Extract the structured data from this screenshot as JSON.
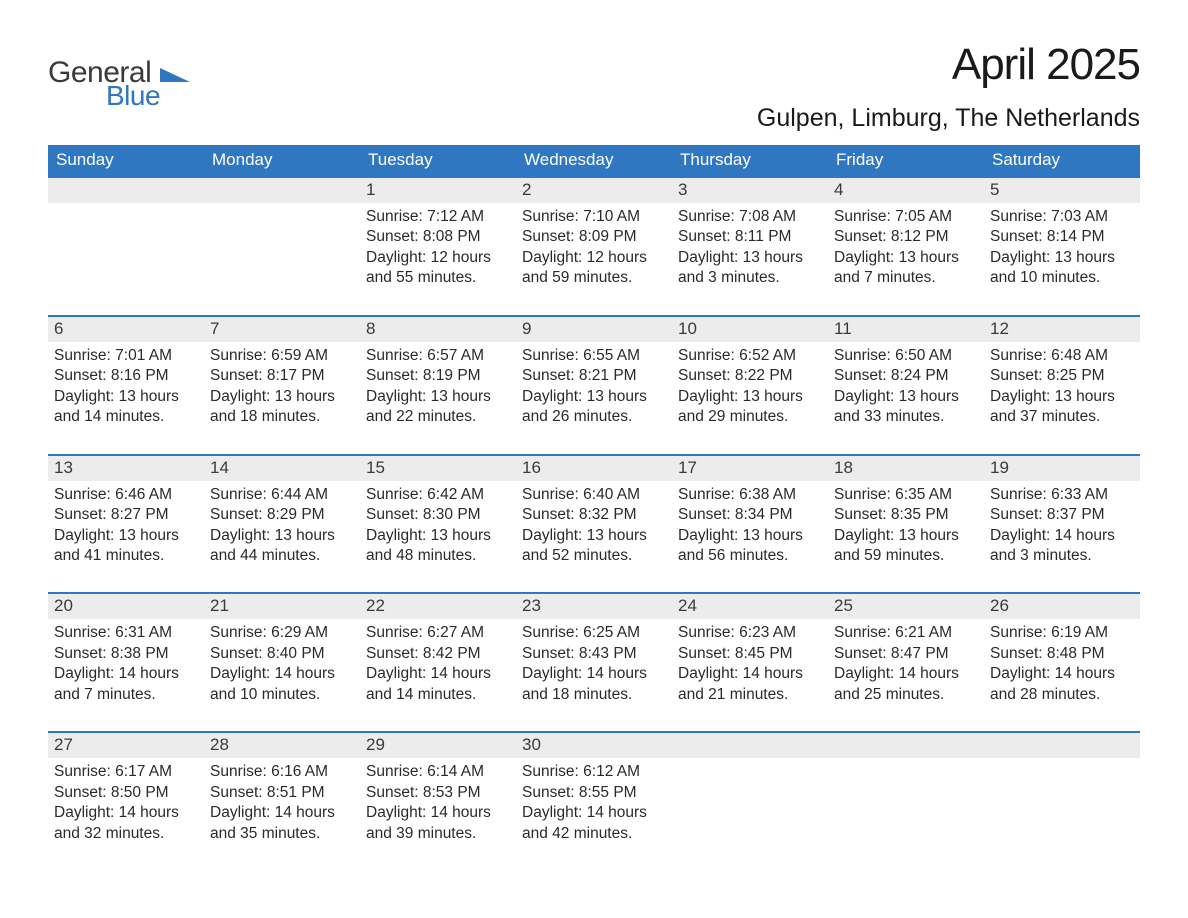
{
  "brand": {
    "word1": "General",
    "word2": "Blue",
    "word1_color": "#3a3a3a",
    "word2_color": "#2f78c1",
    "shape_color": "#2f78c1"
  },
  "title": "April 2025",
  "location": "Gulpen, Limburg, The Netherlands",
  "colors": {
    "header_bg": "#2f78c1",
    "header_text": "#ffffff",
    "daynum_bg": "#ececec",
    "row_border": "#2f78c1",
    "body_text": "#2a2a2a",
    "page_bg": "#ffffff"
  },
  "typography": {
    "title_fontsize": 44,
    "location_fontsize": 25,
    "header_cell_fontsize": 17,
    "daynum_fontsize": 17,
    "body_fontsize": 15.5
  },
  "weekday_headers": [
    "Sunday",
    "Monday",
    "Tuesday",
    "Wednesday",
    "Thursday",
    "Friday",
    "Saturday"
  ],
  "labels": {
    "sunrise": "Sunrise:",
    "sunset": "Sunset:",
    "daylight": "Daylight:"
  },
  "weeks": [
    [
      {
        "n": "",
        "sunrise": "",
        "sunset": "",
        "dl1": "",
        "dl2": ""
      },
      {
        "n": "",
        "sunrise": "",
        "sunset": "",
        "dl1": "",
        "dl2": ""
      },
      {
        "n": "1",
        "sunrise": "7:12 AM",
        "sunset": "8:08 PM",
        "dl1": "12 hours",
        "dl2": "and 55 minutes."
      },
      {
        "n": "2",
        "sunrise": "7:10 AM",
        "sunset": "8:09 PM",
        "dl1": "12 hours",
        "dl2": "and 59 minutes."
      },
      {
        "n": "3",
        "sunrise": "7:08 AM",
        "sunset": "8:11 PM",
        "dl1": "13 hours",
        "dl2": "and 3 minutes."
      },
      {
        "n": "4",
        "sunrise": "7:05 AM",
        "sunset": "8:12 PM",
        "dl1": "13 hours",
        "dl2": "and 7 minutes."
      },
      {
        "n": "5",
        "sunrise": "7:03 AM",
        "sunset": "8:14 PM",
        "dl1": "13 hours",
        "dl2": "and 10 minutes."
      }
    ],
    [
      {
        "n": "6",
        "sunrise": "7:01 AM",
        "sunset": "8:16 PM",
        "dl1": "13 hours",
        "dl2": "and 14 minutes."
      },
      {
        "n": "7",
        "sunrise": "6:59 AM",
        "sunset": "8:17 PM",
        "dl1": "13 hours",
        "dl2": "and 18 minutes."
      },
      {
        "n": "8",
        "sunrise": "6:57 AM",
        "sunset": "8:19 PM",
        "dl1": "13 hours",
        "dl2": "and 22 minutes."
      },
      {
        "n": "9",
        "sunrise": "6:55 AM",
        "sunset": "8:21 PM",
        "dl1": "13 hours",
        "dl2": "and 26 minutes."
      },
      {
        "n": "10",
        "sunrise": "6:52 AM",
        "sunset": "8:22 PM",
        "dl1": "13 hours",
        "dl2": "and 29 minutes."
      },
      {
        "n": "11",
        "sunrise": "6:50 AM",
        "sunset": "8:24 PM",
        "dl1": "13 hours",
        "dl2": "and 33 minutes."
      },
      {
        "n": "12",
        "sunrise": "6:48 AM",
        "sunset": "8:25 PM",
        "dl1": "13 hours",
        "dl2": "and 37 minutes."
      }
    ],
    [
      {
        "n": "13",
        "sunrise": "6:46 AM",
        "sunset": "8:27 PM",
        "dl1": "13 hours",
        "dl2": "and 41 minutes."
      },
      {
        "n": "14",
        "sunrise": "6:44 AM",
        "sunset": "8:29 PM",
        "dl1": "13 hours",
        "dl2": "and 44 minutes."
      },
      {
        "n": "15",
        "sunrise": "6:42 AM",
        "sunset": "8:30 PM",
        "dl1": "13 hours",
        "dl2": "and 48 minutes."
      },
      {
        "n": "16",
        "sunrise": "6:40 AM",
        "sunset": "8:32 PM",
        "dl1": "13 hours",
        "dl2": "and 52 minutes."
      },
      {
        "n": "17",
        "sunrise": "6:38 AM",
        "sunset": "8:34 PM",
        "dl1": "13 hours",
        "dl2": "and 56 minutes."
      },
      {
        "n": "18",
        "sunrise": "6:35 AM",
        "sunset": "8:35 PM",
        "dl1": "13 hours",
        "dl2": "and 59 minutes."
      },
      {
        "n": "19",
        "sunrise": "6:33 AM",
        "sunset": "8:37 PM",
        "dl1": "14 hours",
        "dl2": "and 3 minutes."
      }
    ],
    [
      {
        "n": "20",
        "sunrise": "6:31 AM",
        "sunset": "8:38 PM",
        "dl1": "14 hours",
        "dl2": "and 7 minutes."
      },
      {
        "n": "21",
        "sunrise": "6:29 AM",
        "sunset": "8:40 PM",
        "dl1": "14 hours",
        "dl2": "and 10 minutes."
      },
      {
        "n": "22",
        "sunrise": "6:27 AM",
        "sunset": "8:42 PM",
        "dl1": "14 hours",
        "dl2": "and 14 minutes."
      },
      {
        "n": "23",
        "sunrise": "6:25 AM",
        "sunset": "8:43 PM",
        "dl1": "14 hours",
        "dl2": "and 18 minutes."
      },
      {
        "n": "24",
        "sunrise": "6:23 AM",
        "sunset": "8:45 PM",
        "dl1": "14 hours",
        "dl2": "and 21 minutes."
      },
      {
        "n": "25",
        "sunrise": "6:21 AM",
        "sunset": "8:47 PM",
        "dl1": "14 hours",
        "dl2": "and 25 minutes."
      },
      {
        "n": "26",
        "sunrise": "6:19 AM",
        "sunset": "8:48 PM",
        "dl1": "14 hours",
        "dl2": "and 28 minutes."
      }
    ],
    [
      {
        "n": "27",
        "sunrise": "6:17 AM",
        "sunset": "8:50 PM",
        "dl1": "14 hours",
        "dl2": "and 32 minutes."
      },
      {
        "n": "28",
        "sunrise": "6:16 AM",
        "sunset": "8:51 PM",
        "dl1": "14 hours",
        "dl2": "and 35 minutes."
      },
      {
        "n": "29",
        "sunrise": "6:14 AM",
        "sunset": "8:53 PM",
        "dl1": "14 hours",
        "dl2": "and 39 minutes."
      },
      {
        "n": "30",
        "sunrise": "6:12 AM",
        "sunset": "8:55 PM",
        "dl1": "14 hours",
        "dl2": "and 42 minutes."
      },
      {
        "n": "",
        "sunrise": "",
        "sunset": "",
        "dl1": "",
        "dl2": ""
      },
      {
        "n": "",
        "sunrise": "",
        "sunset": "",
        "dl1": "",
        "dl2": ""
      },
      {
        "n": "",
        "sunrise": "",
        "sunset": "",
        "dl1": "",
        "dl2": ""
      }
    ]
  ]
}
